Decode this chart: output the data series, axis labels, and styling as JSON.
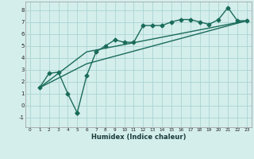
{
  "xlabel": "Humidex (Indice chaleur)",
  "background_color": "#d4eeec",
  "grid_color": "#aad4d2",
  "line_color": "#1a6b5a",
  "xlim": [
    -0.5,
    23.5
  ],
  "ylim": [
    -1.8,
    8.7
  ],
  "xticks": [
    0,
    1,
    2,
    3,
    4,
    5,
    6,
    7,
    8,
    9,
    10,
    11,
    12,
    13,
    14,
    15,
    16,
    17,
    18,
    19,
    20,
    21,
    22,
    23
  ],
  "yticks": [
    -1,
    0,
    1,
    2,
    3,
    4,
    5,
    6,
    7,
    8
  ],
  "line1_x": [
    1,
    2,
    3,
    4,
    5,
    5,
    6,
    7,
    8,
    9,
    10,
    11,
    12,
    13,
    14,
    15,
    16,
    17,
    18,
    19,
    20,
    21,
    22,
    23
  ],
  "line1_y": [
    1.5,
    2.7,
    2.8,
    1.0,
    -0.6,
    -0.6,
    2.5,
    4.5,
    5.0,
    5.5,
    5.3,
    5.3,
    6.7,
    6.7,
    6.7,
    7.0,
    7.2,
    7.2,
    7.0,
    6.8,
    7.2,
    8.2,
    7.1,
    7.1
  ],
  "line2_x": [
    1,
    6,
    23
  ],
  "line2_y": [
    1.5,
    3.5,
    7.1
  ],
  "line3_x": [
    1,
    6,
    23
  ],
  "line3_y": [
    1.5,
    4.5,
    7.1
  ],
  "linewidth": 1.0,
  "marker": "D",
  "marker_size": 2.5
}
